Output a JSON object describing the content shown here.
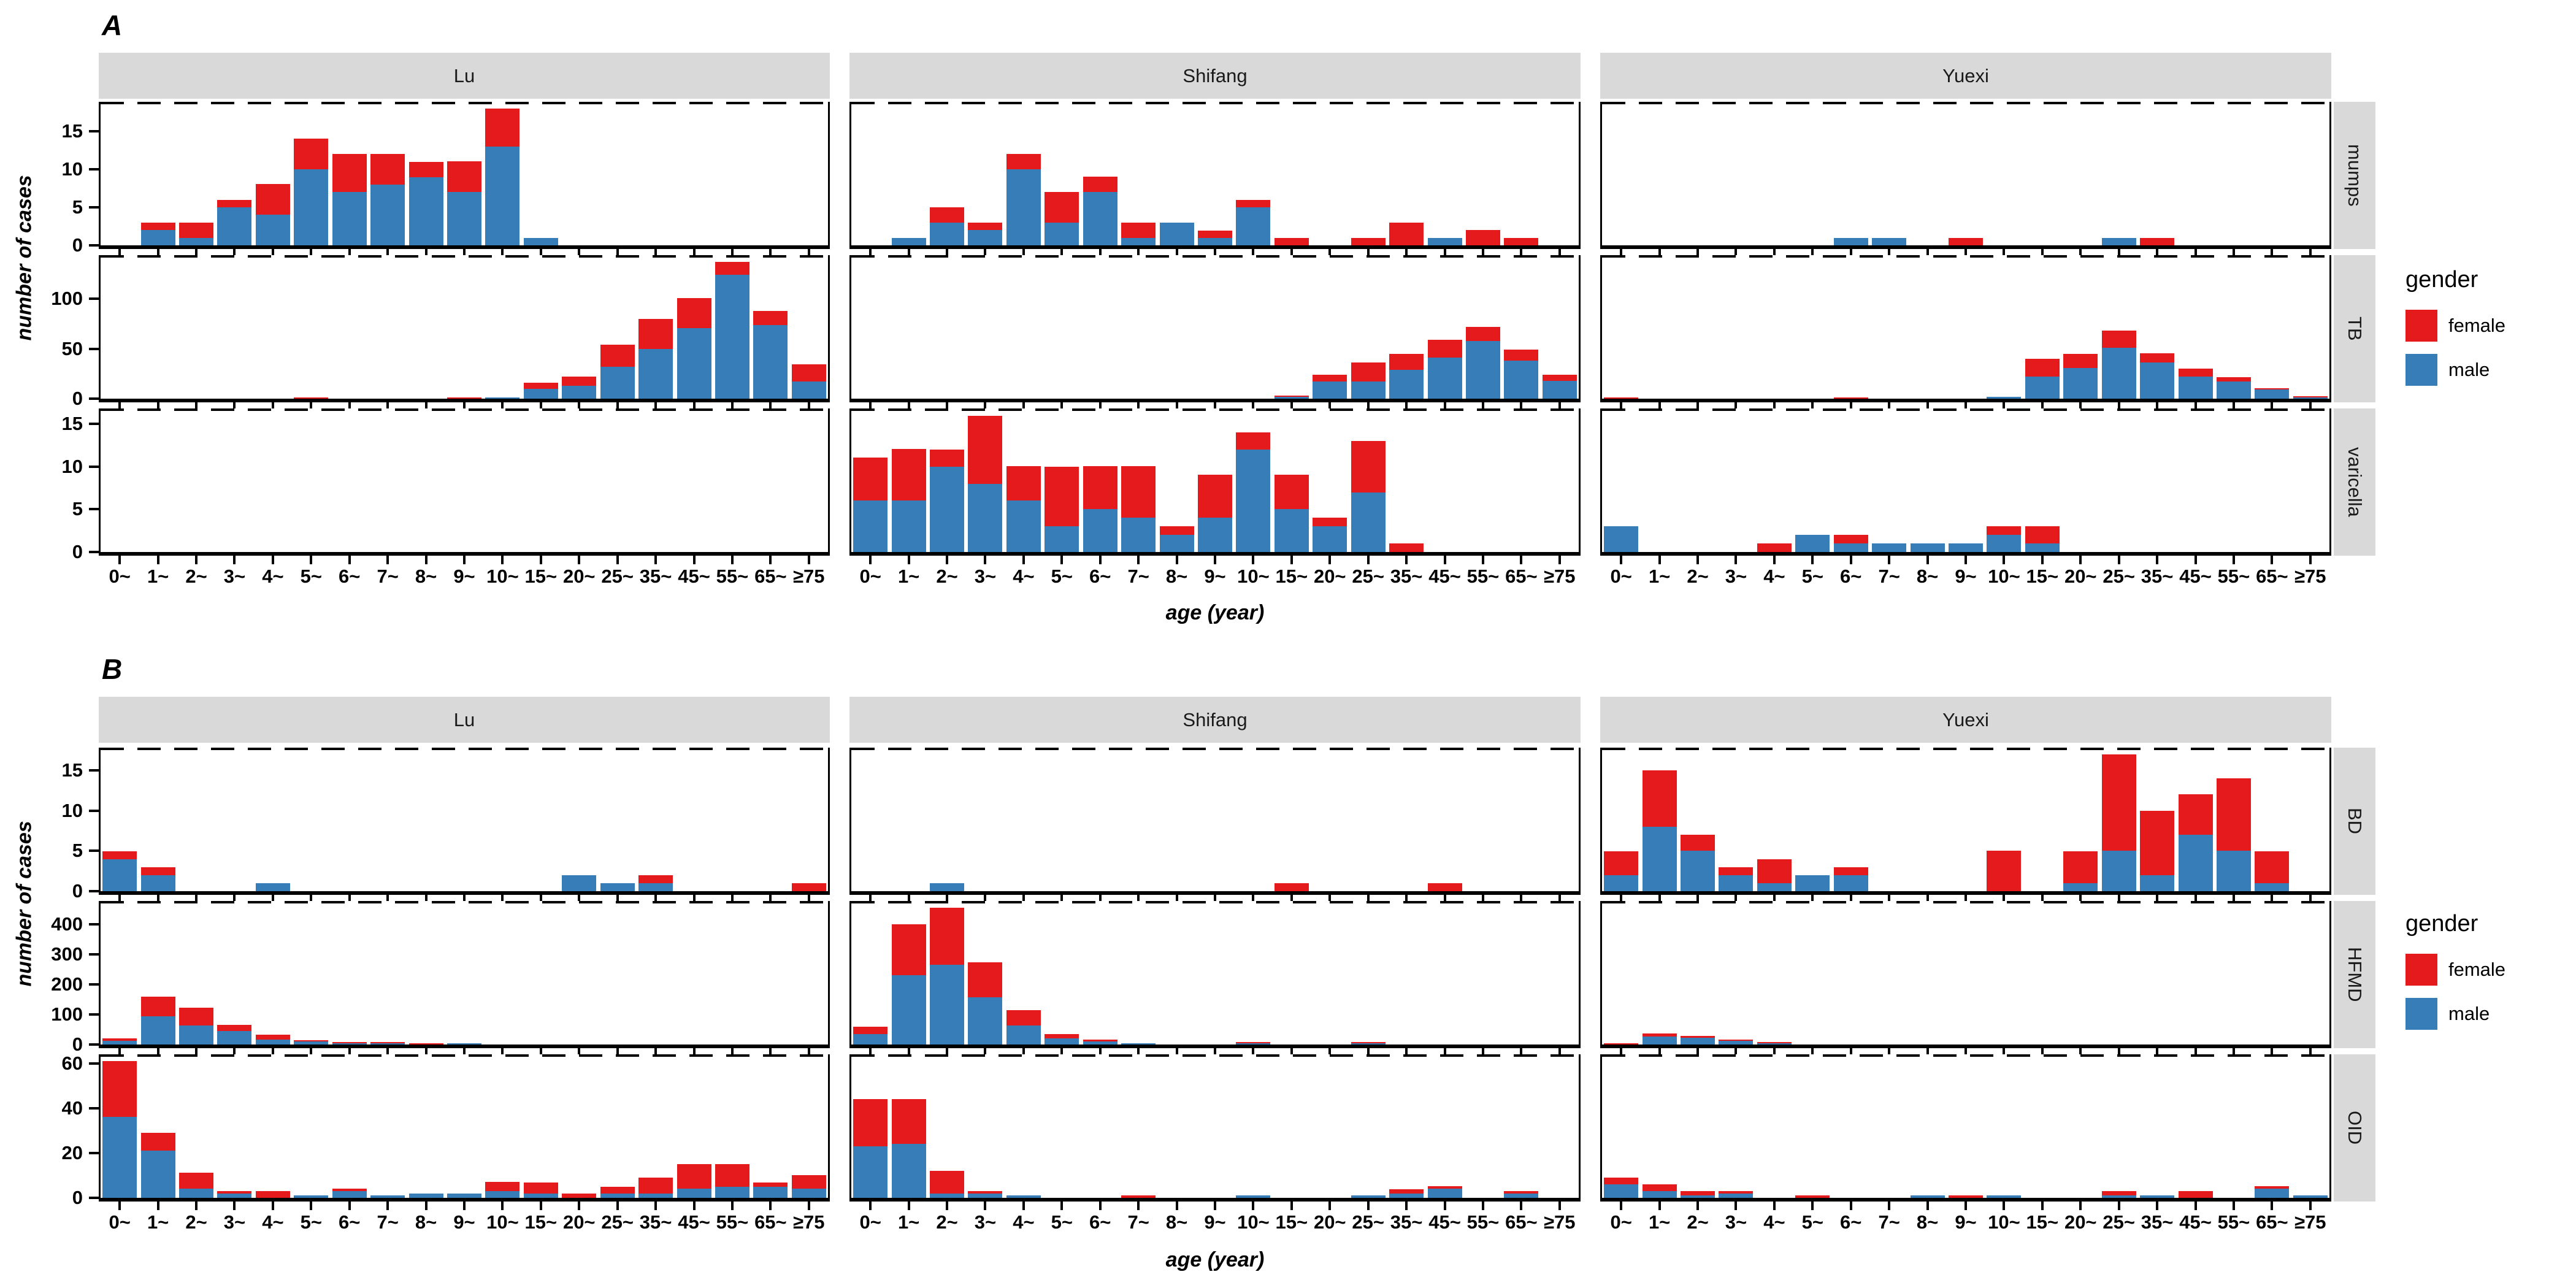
{
  "figure": {
    "panel_a_label": "A",
    "panel_b_label": "B",
    "y_axis_label": "number of cases",
    "x_axis_label": "age (year)",
    "legend": {
      "title": "gender",
      "items": [
        {
          "label": "female",
          "color": "#E41A1C"
        },
        {
          "label": "male",
          "color": "#377EB8"
        }
      ]
    },
    "colors": {
      "female": "#E41A1C",
      "male": "#377EB8",
      "strip_bg": "#D9D9D9",
      "panel_border": "#000000"
    }
  },
  "chart_data": {
    "type": "bar",
    "stacked": true,
    "legend_position": "right",
    "grid": false,
    "xlabel": "age (year)",
    "ylabel": "number of cases",
    "categories": [
      "0~",
      "1~",
      "2~",
      "3~",
      "4~",
      "5~",
      "6~",
      "7~",
      "8~",
      "9~",
      "10~",
      "15~",
      "20~",
      "25~",
      "35~",
      "45~",
      "55~",
      "65~",
      "≥75"
    ],
    "facet_columns": [
      "Lu",
      "Shifang",
      "Yuexi"
    ],
    "panels": [
      {
        "label": "A",
        "rows": [
          {
            "disease": "mumps",
            "yticks": [
              0,
              5,
              10,
              15
            ],
            "ymax": 18.9,
            "cities": {
              "Lu": {
                "male": [
                  0,
                  2,
                  1,
                  5,
                  4,
                  10,
                  7,
                  8,
                  9,
                  7,
                  13,
                  1,
                  0,
                  0,
                  0,
                  0,
                  0,
                  0,
                  0
                ],
                "female": [
                  0,
                  1,
                  2,
                  1,
                  4,
                  4,
                  5,
                  4,
                  2,
                  4,
                  5,
                  0,
                  0,
                  0,
                  0,
                  0,
                  0,
                  0,
                  0
                ]
              },
              "Shifang": {
                "male": [
                  0,
                  1,
                  3,
                  2,
                  10,
                  3,
                  7,
                  1,
                  3,
                  1,
                  5,
                  0,
                  0,
                  0,
                  0,
                  1,
                  0,
                  0,
                  0
                ],
                "female": [
                  0,
                  0,
                  2,
                  1,
                  2,
                  4,
                  2,
                  2,
                  0,
                  1,
                  1,
                  1,
                  0,
                  1,
                  3,
                  0,
                  2,
                  1,
                  0
                ]
              },
              "Yuexi": {
                "male": [
                  0,
                  0,
                  0,
                  0,
                  0,
                  0,
                  1,
                  1,
                  0,
                  0,
                  0,
                  0,
                  0,
                  1,
                  0,
                  0,
                  0,
                  0,
                  0
                ],
                "female": [
                  0,
                  0,
                  0,
                  0,
                  0,
                  0,
                  0,
                  0,
                  0,
                  1,
                  0,
                  0,
                  0,
                  0,
                  1,
                  0,
                  0,
                  0,
                  0
                ]
              }
            }
          },
          {
            "disease": "TB",
            "yticks": [
              0,
              50,
              100
            ],
            "ymax": 143.85,
            "cities": {
              "Lu": {
                "male": [
                  0,
                  0,
                  0,
                  0,
                  0,
                  0,
                  0,
                  0,
                  0,
                  0,
                  1,
                  10,
                  13,
                  32,
                  50,
                  71,
                  124,
                  74,
                  17
                ],
                "female": [
                  0,
                  0,
                  0,
                  0,
                  0,
                  1,
                  0,
                  0,
                  0,
                  1,
                  0,
                  6,
                  9,
                  22,
                  30,
                  30,
                  13,
                  14,
                  17
                ]
              },
              "Shifang": {
                "male": [
                  0,
                  0,
                  0,
                  0,
                  0,
                  0,
                  0,
                  0,
                  0,
                  0,
                  0,
                  2,
                  17,
                  17,
                  29,
                  41,
                  58,
                  38,
                  18
                ],
                "female": [
                  0,
                  0,
                  0,
                  0,
                  0,
                  0,
                  0,
                  0,
                  0,
                  0,
                  0,
                  1,
                  7,
                  19,
                  16,
                  18,
                  14,
                  11,
                  6
                ]
              },
              "Yuexi": {
                "male": [
                  0,
                  0,
                  0,
                  0,
                  0,
                  0,
                  0,
                  0,
                  0,
                  0,
                  2,
                  22,
                  31,
                  51,
                  36,
                  22,
                  17,
                  9,
                  1
                ],
                "female": [
                  1,
                  0,
                  0,
                  0,
                  0,
                  0,
                  1,
                  0,
                  0,
                  0,
                  0,
                  18,
                  14,
                  17,
                  9,
                  8,
                  4,
                  1,
                  1
                ]
              }
            }
          },
          {
            "disease": "varicella",
            "yticks": [
              0,
              5,
              10,
              15
            ],
            "ymax": 16.8,
            "cities": {
              "Lu": {
                "male": [
                  0,
                  0,
                  0,
                  0,
                  0,
                  0,
                  0,
                  0,
                  0,
                  0,
                  0,
                  0,
                  0,
                  0,
                  0,
                  0,
                  0,
                  0,
                  0
                ],
                "female": [
                  0,
                  0,
                  0,
                  0,
                  0,
                  0,
                  0,
                  0,
                  0,
                  0,
                  0,
                  0,
                  0,
                  0,
                  0,
                  0,
                  0,
                  0,
                  0
                ]
              },
              "Shifang": {
                "male": [
                  6,
                  6,
                  10,
                  8,
                  6,
                  3,
                  5,
                  4,
                  2,
                  4,
                  12,
                  5,
                  3,
                  7,
                  0,
                  0,
                  0,
                  0,
                  0
                ],
                "female": [
                  5,
                  6,
                  2,
                  8,
                  4,
                  7,
                  5,
                  6,
                  1,
                  5,
                  2,
                  4,
                  1,
                  6,
                  1,
                  0,
                  0,
                  0,
                  0
                ]
              },
              "Yuexi": {
                "male": [
                  3,
                  0,
                  0,
                  0,
                  0,
                  2,
                  1,
                  1,
                  1,
                  1,
                  2,
                  1,
                  0,
                  0,
                  0,
                  0,
                  0,
                  0,
                  0
                ],
                "female": [
                  0,
                  0,
                  0,
                  0,
                  1,
                  0,
                  1,
                  0,
                  0,
                  0,
                  1,
                  2,
                  0,
                  0,
                  0,
                  0,
                  0,
                  0,
                  0
                ]
              }
            }
          }
        ]
      },
      {
        "label": "B",
        "rows": [
          {
            "disease": "BD",
            "yticks": [
              0,
              5,
              10,
              15
            ],
            "ymax": 17.85,
            "cities": {
              "Lu": {
                "male": [
                  4,
                  2,
                  0,
                  0,
                  1,
                  0,
                  0,
                  0,
                  0,
                  0,
                  0,
                  0,
                  2,
                  1,
                  1,
                  0,
                  0,
                  0,
                  0
                ],
                "female": [
                  1,
                  1,
                  0,
                  0,
                  0,
                  0,
                  0,
                  0,
                  0,
                  0,
                  0,
                  0,
                  0,
                  0,
                  1,
                  0,
                  0,
                  0,
                  1
                ]
              },
              "Shifang": {
                "male": [
                  0,
                  0,
                  1,
                  0,
                  0,
                  0,
                  0,
                  0,
                  0,
                  0,
                  0,
                  0,
                  0,
                  0,
                  0,
                  0,
                  0,
                  0,
                  0
                ],
                "female": [
                  0,
                  0,
                  0,
                  0,
                  0,
                  0,
                  0,
                  0,
                  0,
                  0,
                  0,
                  1,
                  0,
                  0,
                  0,
                  1,
                  0,
                  0,
                  0
                ]
              },
              "Yuexi": {
                "male": [
                  2,
                  8,
                  5,
                  2,
                  1,
                  2,
                  2,
                  0,
                  0,
                  0,
                  0,
                  0,
                  1,
                  5,
                  2,
                  7,
                  5,
                  1,
                  0
                ],
                "female": [
                  3,
                  7,
                  2,
                  1,
                  3,
                  0,
                  1,
                  0,
                  0,
                  0,
                  5,
                  0,
                  4,
                  12,
                  8,
                  5,
                  9,
                  4,
                  0
                ]
              }
            }
          },
          {
            "disease": "HFMD",
            "yticks": [
              0,
              100,
              200,
              300,
              400
            ],
            "ymax": 477.8,
            "cities": {
              "Lu": {
                "male": [
                  12,
                  94,
                  64,
                  45,
                  16,
                  10,
                  4,
                  2,
                  0,
                  2,
                  0,
                  0,
                  0,
                  0,
                  0,
                  0,
                  0,
                  0,
                  0
                ],
                "female": [
                  8,
                  65,
                  59,
                  21,
                  16,
                  2,
                  4,
                  4,
                  2,
                  0,
                  0,
                  0,
                  0,
                  0,
                  0,
                  0,
                  0,
                  0,
                  0
                ]
              },
              "Shifang": {
                "male": [
                  35,
                  230,
                  265,
                  157,
                  64,
                  21,
                  10,
                  5,
                  0,
                  0,
                  1,
                  0,
                  0,
                  3,
                  0,
                  0,
                  0,
                  0,
                  0
                ],
                "female": [
                  24,
                  170,
                  190,
                  117,
                  51,
                  15,
                  7,
                  0,
                  0,
                  0,
                  3,
                  0,
                  0,
                  2,
                  0,
                  0,
                  0,
                  0,
                  0
                ]
              },
              "Yuexi": {
                "male": [
                  0,
                  27,
                  22,
                  13,
                  2,
                  0,
                  0,
                  0,
                  0,
                  0,
                  0,
                  0,
                  0,
                  0,
                  0,
                  0,
                  0,
                  0,
                  0
                ],
                "female": [
                  3,
                  11,
                  7,
                  4,
                  3,
                  0,
                  0,
                  0,
                  0,
                  0,
                  0,
                  0,
                  0,
                  0,
                  0,
                  0,
                  0,
                  0,
                  0
                ]
              }
            }
          },
          {
            "disease": "OID",
            "yticks": [
              0,
              20,
              40,
              60
            ],
            "ymax": 64.05,
            "cities": {
              "Lu": {
                "male": [
                  36,
                  21,
                  4,
                  2,
                  0,
                  1,
                  3,
                  1,
                  2,
                  2,
                  3,
                  2,
                  0,
                  2,
                  2,
                  4,
                  5,
                  5,
                  4
                ],
                "female": [
                  25,
                  8,
                  7,
                  1,
                  3,
                  0,
                  1,
                  0,
                  0,
                  0,
                  4,
                  5,
                  2,
                  3,
                  7,
                  11,
                  10,
                  2,
                  6
                ]
              },
              "Shifang": {
                "male": [
                  23,
                  24,
                  2,
                  2,
                  1,
                  0,
                  0,
                  0,
                  0,
                  0,
                  1,
                  0,
                  0,
                  1,
                  2,
                  4,
                  0,
                  2,
                  0
                ],
                "female": [
                  21,
                  20,
                  10,
                  1,
                  0,
                  0,
                  0,
                  1,
                  0,
                  0,
                  0,
                  0,
                  0,
                  0,
                  2,
                  1,
                  0,
                  1,
                  0
                ]
              },
              "Yuexi": {
                "male": [
                  6,
                  3,
                  1,
                  2,
                  0,
                  0,
                  0,
                  0,
                  1,
                  0,
                  1,
                  0,
                  0,
                  1,
                  1,
                  0,
                  0,
                  4,
                  1
                ],
                "female": [
                  3,
                  3,
                  2,
                  1,
                  0,
                  1,
                  0,
                  0,
                  0,
                  1,
                  0,
                  0,
                  0,
                  2,
                  0,
                  3,
                  0,
                  1,
                  0
                ]
              }
            }
          }
        ]
      }
    ]
  }
}
